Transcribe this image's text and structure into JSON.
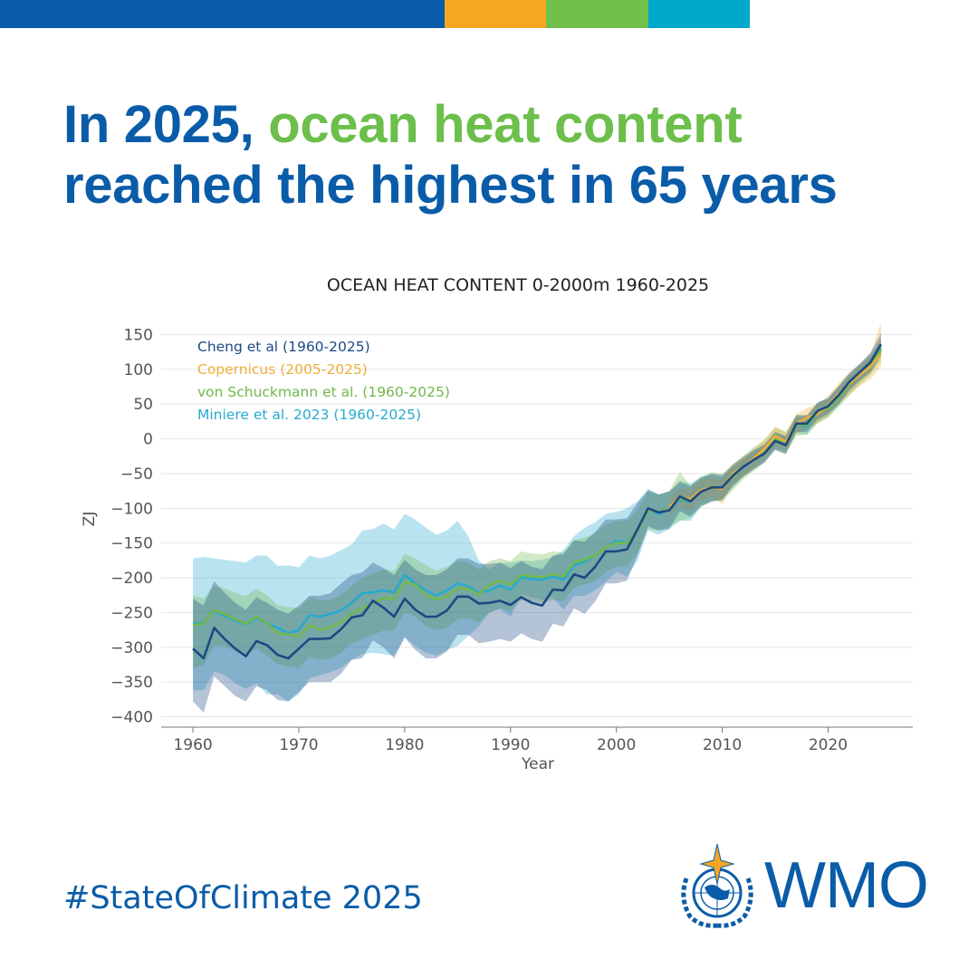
{
  "colors": {
    "brand_blue": "#0a5ca8",
    "brand_green": "#6cbf4b",
    "bar_orange": "#f5a623",
    "bar_green": "#72c04c",
    "bar_cyan": "#00a8cc"
  },
  "headline": {
    "line1_prefix": "In 2025, ",
    "line1_highlight": "ocean heat content",
    "line2": "reached the highest in 65 years"
  },
  "footer": {
    "hashtag": "#StateOfClimate 2025",
    "logo_text": "WMO",
    "logo_icon": "wmo-emblem-icon"
  },
  "chart_data": {
    "type": "line",
    "title": "OCEAN HEAT CONTENT 0-2000m 1960-2025",
    "xlabel": "Year",
    "ylabel": "ZJ",
    "xlim": [
      1957,
      2028
    ],
    "ylim": [
      -415,
      165
    ],
    "xticks": [
      1960,
      1970,
      1980,
      1990,
      2000,
      2010,
      2020
    ],
    "yticks": [
      150,
      100,
      50,
      0,
      -50,
      -100,
      -150,
      -200,
      -250,
      -300,
      -350,
      -400
    ],
    "ytick_labels": [
      "150",
      "100",
      "50",
      "0",
      "−50",
      "−100",
      "−150",
      "−200",
      "−250",
      "−300",
      "−350",
      "−400"
    ],
    "grid": true,
    "legend_position": "top-left",
    "series": [
      {
        "name": "Miniere et al. 2023 (1960-2025)",
        "color": "#29a9cf",
        "x": [
          1960,
          1961,
          1962,
          1963,
          1964,
          1965,
          1966,
          1967,
          1968,
          1969,
          1970,
          1971,
          1972,
          1973,
          1974,
          1975,
          1976,
          1977,
          1978,
          1979,
          1980,
          1981,
          1982,
          1983,
          1984,
          1985,
          1986,
          1987,
          1988,
          1989,
          1990,
          1991,
          1992,
          1993,
          1994,
          1995,
          1996,
          1997,
          1998,
          1999,
          2000,
          2001,
          2002,
          2003,
          2004,
          2005,
          2006,
          2007,
          2008,
          2009,
          2010,
          2011,
          2012,
          2013,
          2014,
          2015,
          2016,
          2017,
          2018,
          2019,
          2020,
          2021,
          2022,
          2023,
          2024,
          2025
        ],
        "values": [
          -266,
          -265,
          -248,
          -255,
          -262,
          -267,
          -258,
          -265,
          -272,
          -280,
          -275,
          -254,
          -256,
          -252,
          -247,
          -236,
          -222,
          -221,
          -218,
          -221,
          -196,
          -208,
          -218,
          -226,
          -218,
          -208,
          -212,
          -222,
          -218,
          -211,
          -217,
          -199,
          -202,
          -203,
          -198,
          -203,
          -182,
          -177,
          -168,
          -156,
          -147,
          -149,
          -132,
          -102,
          -108,
          -102,
          -88,
          -91,
          -76,
          -70,
          -69,
          -54,
          -41,
          -30,
          -20,
          -3,
          -8,
          20,
          18,
          38,
          46,
          62,
          80,
          95,
          108,
          130
        ],
        "upper": [
          -172,
          -170,
          -172,
          -174,
          -176,
          -178,
          -168,
          -168,
          -183,
          -182,
          -185,
          -168,
          -172,
          -168,
          -160,
          -152,
          -132,
          -130,
          -122,
          -130,
          -108,
          -116,
          -128,
          -138,
          -132,
          -118,
          -140,
          -175,
          -188,
          -178,
          -178,
          -175,
          -176,
          -174,
          -170,
          -160,
          -140,
          -128,
          -120,
          -108,
          -105,
          -100,
          -90,
          -72,
          -80,
          -76,
          -60,
          -64,
          -55,
          -52,
          -55,
          -40,
          -30,
          -18,
          -8,
          8,
          4,
          32,
          30,
          52,
          60,
          76,
          94,
          108,
          122,
          142
        ],
        "lower": [
          -362,
          -362,
          -335,
          -340,
          -352,
          -360,
          -352,
          -368,
          -368,
          -378,
          -368,
          -345,
          -340,
          -336,
          -330,
          -318,
          -310,
          -308,
          -310,
          -312,
          -285,
          -298,
          -308,
          -312,
          -304,
          -298,
          -284,
          -270,
          -250,
          -245,
          -256,
          -224,
          -228,
          -232,
          -228,
          -246,
          -226,
          -226,
          -218,
          -206,
          -192,
          -198,
          -175,
          -132,
          -138,
          -130,
          -118,
          -118,
          -98,
          -90,
          -86,
          -70,
          -54,
          -42,
          -32,
          -14,
          -20,
          8,
          6,
          24,
          32,
          48,
          66,
          82,
          94,
          118
        ]
      },
      {
        "name": "von Schuckmann et al. (1960-2025)",
        "color": "#72b84c",
        "x": [
          1960,
          1961,
          1962,
          1963,
          1964,
          1965,
          1966,
          1967,
          1968,
          1969,
          1970,
          1971,
          1972,
          1973,
          1974,
          1975,
          1976,
          1977,
          1978,
          1979,
          1980,
          1981,
          1982,
          1983,
          1984,
          1985,
          1986,
          1987,
          1988,
          1989,
          1990,
          1991,
          1992,
          1993,
          1994,
          1995,
          1996,
          1997,
          1998,
          1999,
          2000,
          2001,
          2002,
          2003,
          2004,
          2005,
          2006,
          2007,
          2008,
          2009,
          2010,
          2011,
          2012,
          2013,
          2014,
          2015,
          2016,
          2017,
          2018,
          2019,
          2020,
          2021,
          2022,
          2023,
          2024,
          2025
        ],
        "values": [
          -268,
          -266,
          -247,
          -252,
          -260,
          -266,
          -256,
          -265,
          -280,
          -281,
          -285,
          -268,
          -275,
          -271,
          -264,
          -251,
          -244,
          -236,
          -229,
          -230,
          -206,
          -210,
          -225,
          -231,
          -227,
          -215,
          -216,
          -224,
          -210,
          -204,
          -210,
          -196,
          -198,
          -199,
          -195,
          -198,
          -178,
          -174,
          -168,
          -156,
          -150,
          -150,
          -132,
          -103,
          -105,
          -101,
          -86,
          -90,
          -75,
          -69,
          -70,
          -54,
          -40,
          -28,
          -18,
          0,
          -6,
          20,
          20,
          38,
          44,
          60,
          78,
          92,
          106,
          128
        ],
        "upper": [
          -225,
          -230,
          -212,
          -215,
          -222,
          -226,
          -216,
          -225,
          -240,
          -242,
          -244,
          -228,
          -232,
          -232,
          -224,
          -212,
          -200,
          -194,
          -188,
          -190,
          -165,
          -172,
          -182,
          -190,
          -184,
          -176,
          -178,
          -188,
          -176,
          -172,
          -176,
          -162,
          -165,
          -166,
          -162,
          -164,
          -146,
          -142,
          -136,
          -124,
          -118,
          -118,
          -102,
          -76,
          -80,
          -75,
          -48,
          -68,
          -54,
          -48,
          -50,
          -36,
          -24,
          -12,
          -2,
          16,
          10,
          34,
          34,
          52,
          58,
          74,
          90,
          106,
          118,
          142
        ],
        "lower": [
          -330,
          -326,
          -298,
          -298,
          -306,
          -312,
          -302,
          -312,
          -325,
          -328,
          -330,
          -314,
          -318,
          -316,
          -308,
          -294,
          -288,
          -282,
          -276,
          -276,
          -250,
          -256,
          -270,
          -276,
          -272,
          -260,
          -258,
          -264,
          -250,
          -244,
          -248,
          -232,
          -234,
          -236,
          -232,
          -234,
          -214,
          -210,
          -204,
          -192,
          -184,
          -184,
          -164,
          -130,
          -132,
          -126,
          -118,
          -114,
          -98,
          -90,
          -90,
          -74,
          -58,
          -46,
          -34,
          -16,
          -22,
          4,
          6,
          22,
          30,
          46,
          62,
          78,
          92,
          112
        ]
      },
      {
        "name": "Copernicus (2005-2025)",
        "color": "#eeae3a",
        "x": [
          2005,
          2006,
          2007,
          2008,
          2009,
          2010,
          2011,
          2012,
          2013,
          2014,
          2015,
          2016,
          2017,
          2018,
          2019,
          2020,
          2021,
          2022,
          2023,
          2024,
          2025
        ],
        "values": [
          -98,
          -84,
          -87,
          -74,
          -70,
          -72,
          -50,
          -40,
          -28,
          -14,
          4,
          -4,
          22,
          30,
          36,
          48,
          65,
          80,
          92,
          104,
          122
        ],
        "upper": [
          -86,
          -72,
          -72,
          -60,
          -56,
          -58,
          -36,
          -26,
          -14,
          0,
          18,
          10,
          36,
          44,
          50,
          62,
          80,
          96,
          108,
          122,
          168
        ],
        "lower": [
          -110,
          -96,
          -102,
          -88,
          -84,
          -94,
          -64,
          -54,
          -42,
          -28,
          -10,
          -18,
          8,
          16,
          22,
          34,
          50,
          64,
          76,
          86,
          104
        ]
      },
      {
        "name": "Cheng et al (1960-2025)",
        "color": "#1c4a84",
        "x": [
          1960,
          1961,
          1962,
          1963,
          1964,
          1965,
          1966,
          1967,
          1968,
          1969,
          1970,
          1971,
          1972,
          1973,
          1974,
          1975,
          1976,
          1977,
          1978,
          1979,
          1980,
          1981,
          1982,
          1983,
          1984,
          1985,
          1986,
          1987,
          1988,
          1989,
          1990,
          1991,
          1992,
          1993,
          1994,
          1995,
          1996,
          1997,
          1998,
          1999,
          2000,
          2001,
          2002,
          2003,
          2004,
          2005,
          2006,
          2007,
          2008,
          2009,
          2010,
          2011,
          2012,
          2013,
          2014,
          2015,
          2016,
          2017,
          2018,
          2019,
          2020,
          2021,
          2022,
          2023,
          2024,
          2025
        ],
        "values": [
          -302,
          -316,
          -272,
          -288,
          -302,
          -313,
          -291,
          -297,
          -311,
          -316,
          -302,
          -288,
          -288,
          -287,
          -274,
          -257,
          -254,
          -233,
          -243,
          -256,
          -230,
          -246,
          -256,
          -256,
          -247,
          -227,
          -227,
          -237,
          -236,
          -233,
          -239,
          -228,
          -236,
          -240,
          -217,
          -218,
          -195,
          -200,
          -184,
          -162,
          -162,
          -159,
          -130,
          -100,
          -106,
          -103,
          -83,
          -90,
          -76,
          -70,
          -70,
          -53,
          -40,
          -30,
          -21,
          -3,
          -9,
          22,
          22,
          40,
          47,
          63,
          82,
          96,
          110,
          136
        ],
        "upper": [
          -230,
          -240,
          -205,
          -222,
          -236,
          -246,
          -228,
          -236,
          -246,
          -252,
          -240,
          -226,
          -226,
          -222,
          -208,
          -196,
          -192,
          -178,
          -186,
          -196,
          -174,
          -188,
          -196,
          -196,
          -188,
          -172,
          -172,
          -180,
          -180,
          -178,
          -186,
          -176,
          -184,
          -188,
          -168,
          -166,
          -146,
          -148,
          -134,
          -116,
          -116,
          -114,
          -92,
          -74,
          -80,
          -76,
          -62,
          -68,
          -56,
          -50,
          -52,
          -38,
          -26,
          -16,
          -8,
          10,
          4,
          34,
          34,
          52,
          58,
          76,
          94,
          108,
          124,
          152
        ],
        "lower": [
          -378,
          -394,
          -342,
          -356,
          -370,
          -378,
          -356,
          -362,
          -376,
          -378,
          -364,
          -350,
          -350,
          -350,
          -338,
          -318,
          -316,
          -290,
          -300,
          -316,
          -286,
          -304,
          -316,
          -316,
          -306,
          -282,
          -282,
          -294,
          -292,
          -288,
          -292,
          -280,
          -288,
          -292,
          -266,
          -270,
          -244,
          -252,
          -234,
          -208,
          -208,
          -204,
          -168,
          -126,
          -132,
          -130,
          -104,
          -112,
          -96,
          -90,
          -88,
          -68,
          -54,
          -44,
          -34,
          -16,
          -22,
          10,
          10,
          28,
          36,
          50,
          70,
          84,
          96,
          120
        ]
      }
    ]
  }
}
